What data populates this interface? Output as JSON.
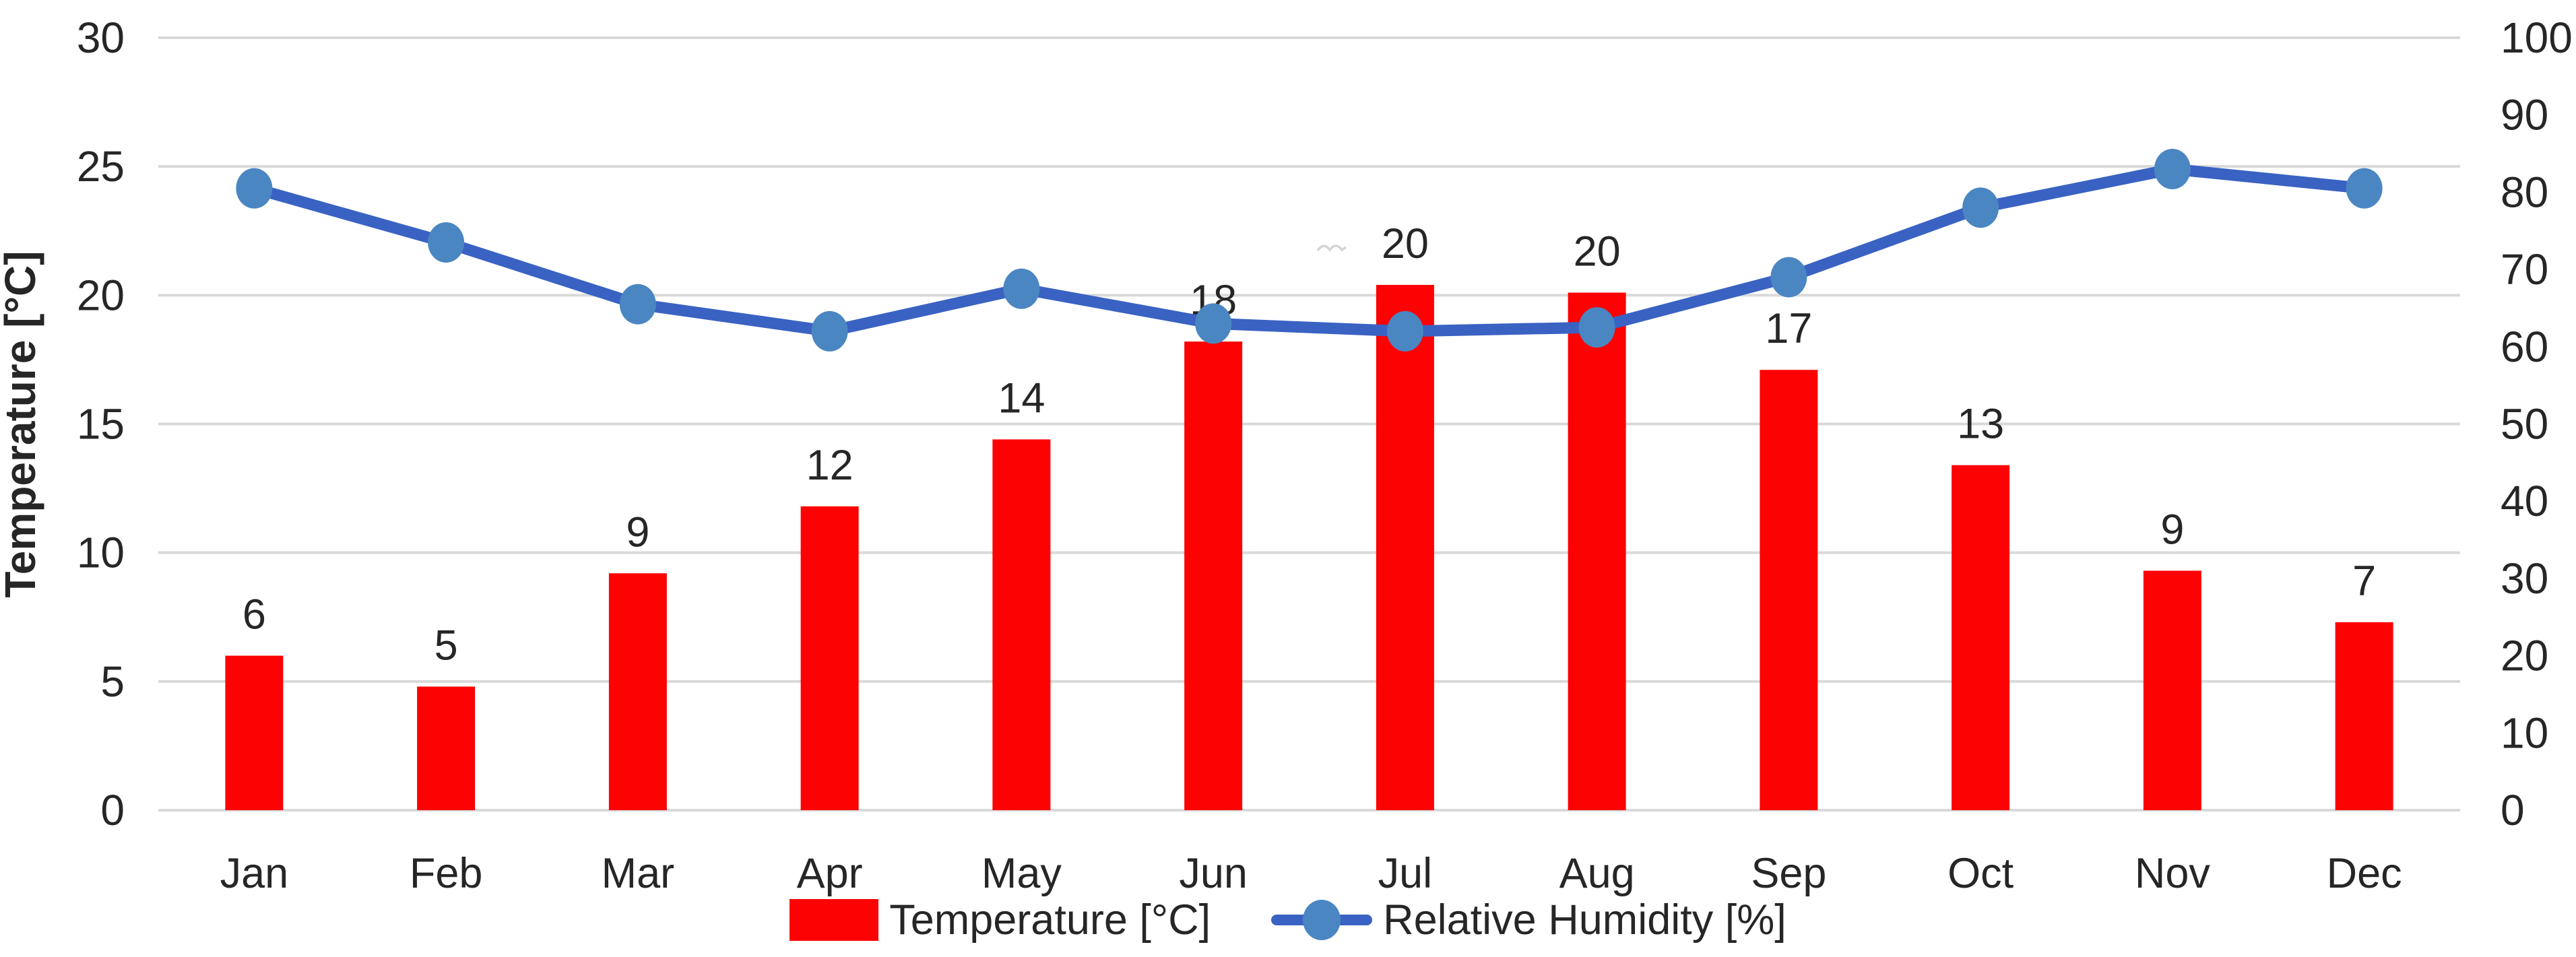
{
  "chart_data": {
    "type": "bar+line combo",
    "categories": [
      "Jan",
      "Feb",
      "Mar",
      "Apr",
      "May",
      "Jun",
      "Jul",
      "Aug",
      "Sep",
      "Oct",
      "Nov",
      "Dec"
    ],
    "series": [
      {
        "name": "Temperature [°C]",
        "type": "bar",
        "axis": "left",
        "color": "#FC0202",
        "values": [
          6.0,
          4.8,
          9.2,
          11.8,
          14.4,
          18.2,
          20.4,
          20.1,
          17.1,
          13.4,
          9.3,
          7.3
        ],
        "data_labels": [
          "6",
          "5",
          "9",
          "12",
          "14",
          "18",
          "20",
          "20",
          "17",
          "13",
          "9",
          "7"
        ]
      },
      {
        "name": "Relative Humidity [%]",
        "type": "line",
        "axis": "right",
        "color": "#3A62C3",
        "marker_color": "#4A86C2",
        "values": [
          80.5,
          73.5,
          65.5,
          62,
          67.5,
          63,
          62,
          62.5,
          69,
          78,
          83,
          80.5
        ]
      }
    ],
    "left_axis": {
      "title": "Temperature [°C]",
      "min": 0,
      "max": 30,
      "step": 5,
      "ticks": [
        "0",
        "5",
        "10",
        "15",
        "20",
        "25",
        "30"
      ]
    },
    "right_axis": {
      "title": "",
      "min": 0,
      "max": 100,
      "step": 10,
      "ticks": [
        "0",
        "10",
        "20",
        "30",
        "40",
        "50",
        "60",
        "70",
        "80",
        "90",
        "100"
      ]
    },
    "grid": true,
    "legend_position": "bottom",
    "title": ""
  },
  "colors": {
    "bar": "#FC0202",
    "line": "#3A62C3",
    "marker": "#4A86C2",
    "grid": "#D9D9D9",
    "text": "#262626"
  }
}
